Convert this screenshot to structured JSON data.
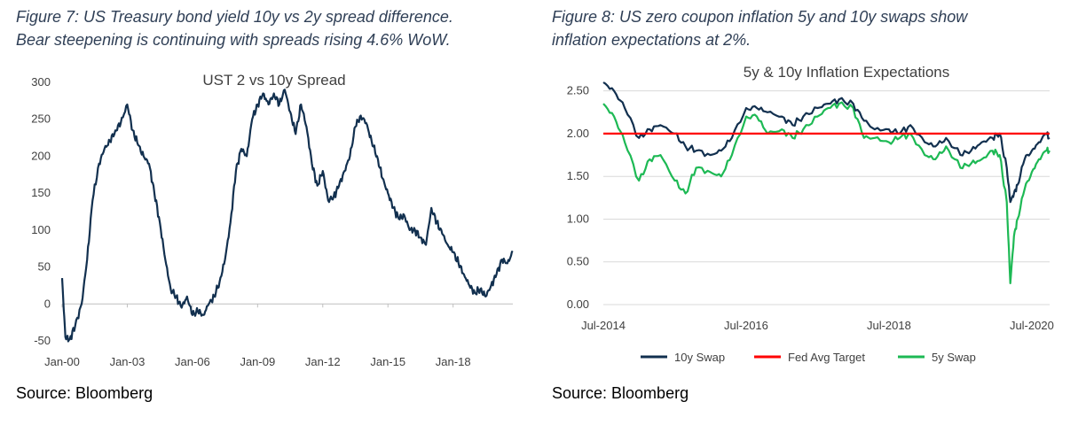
{
  "figures": [
    {
      "caption_line1": "Figure 7: US Treasury bond yield 10y vs 2y spread difference.",
      "caption_line2": "Bear steepening is continuing with spreads rising 4.6% WoW.",
      "source": "Source: Bloomberg"
    },
    {
      "caption_line1": "Figure 8: US zero coupon inflation 5y and 10y swaps show",
      "caption_line2": "inflation expectations at 2%.",
      "source": "Source: Bloomberg"
    }
  ],
  "chart_data": [
    {
      "type": "line",
      "title": "UST 2 vs 10y Spread",
      "xlabel": "",
      "ylabel": "",
      "x_ticks": [
        "Jan-00",
        "Jan-03",
        "Jan-06",
        "Jan-09",
        "Jan-12",
        "Jan-15",
        "Jan-18"
      ],
      "y_ticks": [
        "300",
        "250",
        "200",
        "150",
        "100",
        "50",
        "0",
        "-50"
      ],
      "xlim": [
        2000.0,
        2020.75
      ],
      "ylim": [
        -50,
        300
      ],
      "grid": false,
      "colors": {
        "line": "#12304f",
        "axis": "#bfbfbf"
      },
      "series": [
        {
          "x": [
            2000.0,
            2000.15,
            2000.35,
            2000.6,
            2000.9,
            2001.15,
            2001.4,
            2001.7,
            2001.95,
            2002.2,
            2002.45,
            2002.7,
            2003.0,
            2003.25,
            2003.5,
            2003.75,
            2004.0,
            2004.25,
            2004.5,
            2004.75,
            2005.0,
            2005.25,
            2005.5,
            2005.75,
            2006.0,
            2006.25,
            2006.5,
            2006.75,
            2007.0,
            2007.25,
            2007.5,
            2007.75,
            2008.0,
            2008.25,
            2008.5,
            2008.75,
            2009.0,
            2009.25,
            2009.5,
            2009.75,
            2010.0,
            2010.25,
            2010.5,
            2010.75,
            2011.0,
            2011.25,
            2011.5,
            2011.75,
            2012.0,
            2012.25,
            2012.5,
            2012.75,
            2013.0,
            2013.25,
            2013.5,
            2013.75,
            2014.0,
            2014.25,
            2014.5,
            2014.75,
            2015.0,
            2015.25,
            2015.5,
            2015.75,
            2016.0,
            2016.25,
            2016.5,
            2016.75,
            2017.0,
            2017.25,
            2017.5,
            2017.75,
            2018.0,
            2018.25,
            2018.5,
            2018.75,
            2019.0,
            2019.25,
            2019.5,
            2019.75,
            2020.0,
            2020.25,
            2020.5,
            2020.75
          ],
          "values": [
            35,
            -45,
            -48,
            -30,
            0,
            60,
            140,
            190,
            210,
            220,
            235,
            245,
            270,
            235,
            215,
            200,
            190,
            150,
            110,
            60,
            20,
            10,
            -5,
            10,
            -15,
            -10,
            -15,
            0,
            10,
            30,
            60,
            110,
            180,
            210,
            200,
            250,
            270,
            285,
            270,
            285,
            270,
            290,
            260,
            230,
            270,
            240,
            190,
            160,
            180,
            140,
            145,
            160,
            180,
            200,
            240,
            255,
            245,
            220,
            200,
            170,
            150,
            130,
            115,
            120,
            100,
            100,
            90,
            80,
            130,
            110,
            95,
            80,
            70,
            55,
            40,
            25,
            15,
            20,
            10,
            25,
            40,
            60,
            55,
            70
          ]
        }
      ]
    },
    {
      "type": "line",
      "title": "5y & 10y Inflation Expectations",
      "xlabel": "",
      "ylabel": "",
      "x_ticks": [
        "Jul-2014",
        "Jul-2016",
        "Jul-2018",
        "Jul-2020"
      ],
      "y_ticks": [
        "2.50",
        "2.00",
        "1.50",
        "1.00",
        "0.50",
        "0.00"
      ],
      "xlim": [
        2014.5,
        2020.75
      ],
      "ylim": [
        0,
        2.6
      ],
      "grid": true,
      "legend_position": "bottom",
      "colors": {
        "10y Swap": "#12304f",
        "Fed Avg Target": "#ff0000",
        "5y Swap": "#1db954",
        "grid": "#d9d9d9"
      },
      "series": [
        {
          "name": "10y Swap",
          "x": [
            2014.5,
            2014.65,
            2014.8,
            2015.0,
            2015.15,
            2015.3,
            2015.5,
            2015.65,
            2015.8,
            2016.0,
            2016.15,
            2016.3,
            2016.5,
            2016.65,
            2016.8,
            2017.0,
            2017.15,
            2017.3,
            2017.5,
            2017.65,
            2017.8,
            2018.0,
            2018.15,
            2018.3,
            2018.5,
            2018.65,
            2018.8,
            2019.0,
            2019.15,
            2019.3,
            2019.5,
            2019.65,
            2019.8,
            2019.95,
            2020.05,
            2020.15,
            2020.2,
            2020.25,
            2020.3,
            2020.4,
            2020.5,
            2020.6,
            2020.7,
            2020.75
          ],
          "values": [
            2.6,
            2.5,
            2.3,
            1.95,
            2.05,
            2.1,
            2.0,
            1.85,
            1.8,
            1.75,
            1.8,
            1.95,
            2.3,
            2.3,
            2.25,
            2.2,
            2.1,
            2.2,
            2.3,
            2.35,
            2.4,
            2.35,
            2.15,
            2.05,
            2.05,
            2.0,
            2.1,
            1.9,
            1.85,
            1.95,
            1.75,
            1.8,
            1.9,
            1.95,
            2.0,
            1.6,
            1.2,
            1.3,
            1.4,
            1.7,
            1.8,
            1.9,
            2.0,
            1.95
          ]
        },
        {
          "name": "Fed Avg Target",
          "x": [
            2014.5,
            2020.75
          ],
          "values": [
            2.0,
            2.0
          ]
        },
        {
          "name": "5y Swap",
          "x": [
            2014.5,
            2014.65,
            2014.8,
            2015.0,
            2015.15,
            2015.3,
            2015.5,
            2015.65,
            2015.8,
            2016.0,
            2016.15,
            2016.3,
            2016.5,
            2016.65,
            2016.8,
            2017.0,
            2017.15,
            2017.3,
            2017.5,
            2017.65,
            2017.8,
            2018.0,
            2018.15,
            2018.3,
            2018.5,
            2018.65,
            2018.8,
            2019.0,
            2019.15,
            2019.3,
            2019.5,
            2019.65,
            2019.8,
            2019.95,
            2020.05,
            2020.15,
            2020.2,
            2020.25,
            2020.3,
            2020.4,
            2020.5,
            2020.6,
            2020.7,
            2020.75
          ],
          "values": [
            2.35,
            2.2,
            1.9,
            1.45,
            1.7,
            1.75,
            1.45,
            1.3,
            1.6,
            1.55,
            1.5,
            1.75,
            2.2,
            2.2,
            2.0,
            2.05,
            1.95,
            2.05,
            2.2,
            2.3,
            2.35,
            2.3,
            1.95,
            1.95,
            1.9,
            1.95,
            2.0,
            1.75,
            1.7,
            1.85,
            1.6,
            1.65,
            1.7,
            1.8,
            1.75,
            1.2,
            0.25,
            0.8,
            1.0,
            1.35,
            1.55,
            1.7,
            1.8,
            1.8
          ]
        }
      ]
    }
  ]
}
